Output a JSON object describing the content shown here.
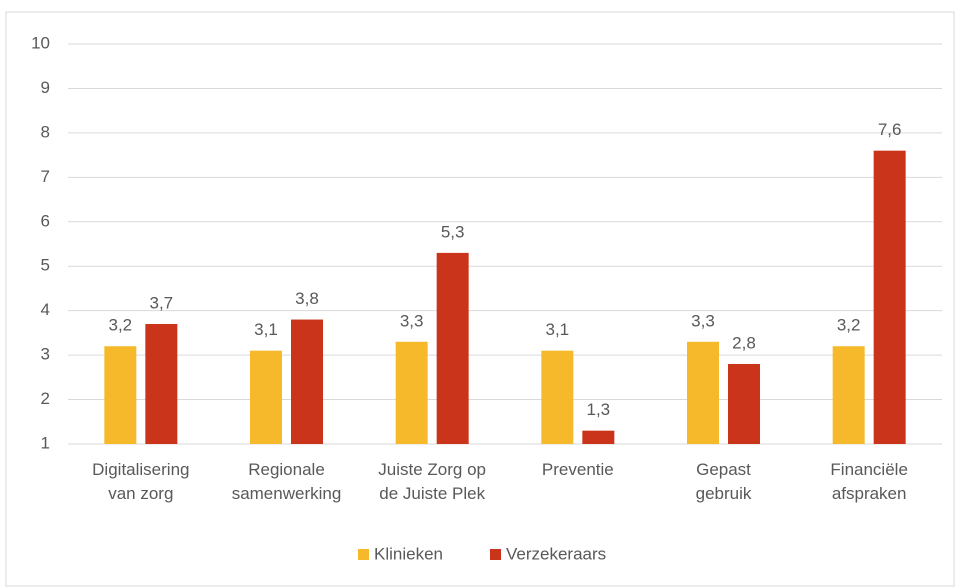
{
  "chart_data": {
    "type": "bar",
    "categories": [
      "Digitalisering\nvan zorg",
      "Regionale\nsamenwerking",
      "Juiste Zorg op\nde Juiste Plek",
      "Preventie",
      "Gepast\ngebruik",
      "Financiële\nafspraken"
    ],
    "series": [
      {
        "name": "Klinieken",
        "color": "#f6b92b",
        "values": [
          3.2,
          3.1,
          3.3,
          3.1,
          3.3,
          3.2
        ],
        "value_labels": [
          "3,2",
          "3,1",
          "3,3",
          "3,1",
          "3,3",
          "3,2"
        ]
      },
      {
        "name": "Verzekeraars",
        "color": "#c9341a",
        "values": [
          3.7,
          3.8,
          5.3,
          1.3,
          2.8,
          7.6
        ],
        "value_labels": [
          "3,7",
          "3,8",
          "5,3",
          "1,3",
          "2,8",
          "7,6"
        ]
      }
    ],
    "ylim": [
      1,
      10
    ],
    "yticks": [
      1,
      2,
      3,
      4,
      5,
      6,
      7,
      8,
      9,
      10
    ],
    "grid": true,
    "legend": "bottom"
  }
}
